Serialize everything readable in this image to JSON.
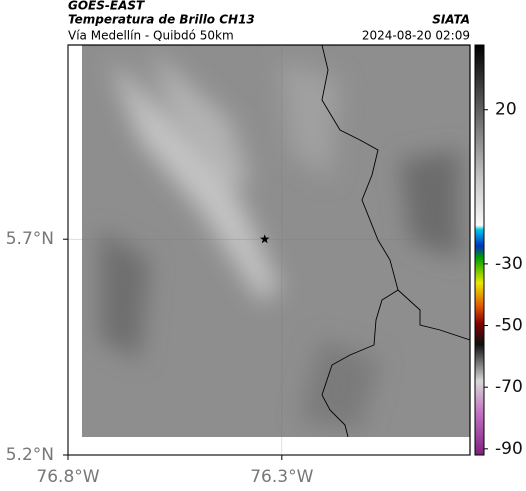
{
  "header": {
    "title": "GOES-EAST",
    "subtitle": "Temperatura de Brillo CH13",
    "source": "SIATA",
    "location": "Vía Medellín - Quibdó 50km",
    "datetime": "2024-08-20 02:09"
  },
  "map": {
    "xlim": [
      -76.8,
      -75.86
    ],
    "ylim": [
      5.2,
      6.15
    ],
    "xticks": [
      {
        "value": -76.8,
        "label": "76.8°W"
      },
      {
        "value": -76.3,
        "label": "76.3°W"
      }
    ],
    "yticks": [
      {
        "value": 5.7,
        "label": "5.7°N"
      },
      {
        "value": 5.2,
        "label": "5.2°N"
      }
    ],
    "grid": true,
    "marker": {
      "lon": -76.34,
      "lat": 5.7
    }
  },
  "colorbar": {
    "lim": [
      -92,
      41
    ],
    "ticks": [
      20,
      -30,
      -50,
      -70,
      -90
    ]
  }
}
